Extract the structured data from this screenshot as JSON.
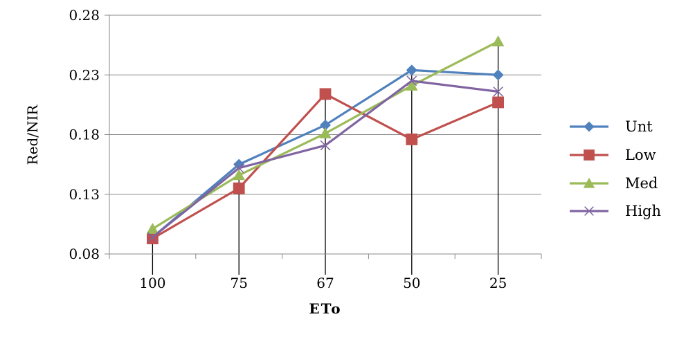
{
  "chart_data": {
    "type": "line",
    "title": "",
    "xlabel": "ETo",
    "ylabel": "Red/NIR",
    "categories": [
      "100",
      "75",
      "67",
      "50",
      "25"
    ],
    "ylim": [
      0.08,
      0.28
    ],
    "yticks": [
      "0.08",
      "0.13",
      "0.18",
      "0.23",
      "0.28"
    ],
    "grid": "horizontal",
    "legend_position": "right",
    "series": [
      {
        "name": "Unt",
        "color": "#4F81BD",
        "marker": "diamond",
        "values": [
          0.094,
          0.155,
          0.188,
          0.234,
          0.23
        ]
      },
      {
        "name": "Low",
        "color": "#C0504D",
        "marker": "square",
        "values": [
          0.093,
          0.135,
          0.214,
          0.176,
          0.207
        ]
      },
      {
        "name": "Med",
        "color": "#9BBB59",
        "marker": "triangle",
        "values": [
          0.101,
          0.146,
          0.181,
          0.221,
          0.258
        ]
      },
      {
        "name": "High",
        "color": "#8064A2",
        "marker": "x",
        "values": [
          0.094,
          0.152,
          0.171,
          0.225,
          0.216
        ]
      }
    ],
    "drop_lines": [
      {
        "category": "100",
        "value": 0.101
      },
      {
        "category": "75",
        "value": 0.155
      },
      {
        "category": "67",
        "value": 0.214
      },
      {
        "category": "50",
        "value": 0.234
      },
      {
        "category": "25",
        "value": 0.258
      }
    ]
  }
}
